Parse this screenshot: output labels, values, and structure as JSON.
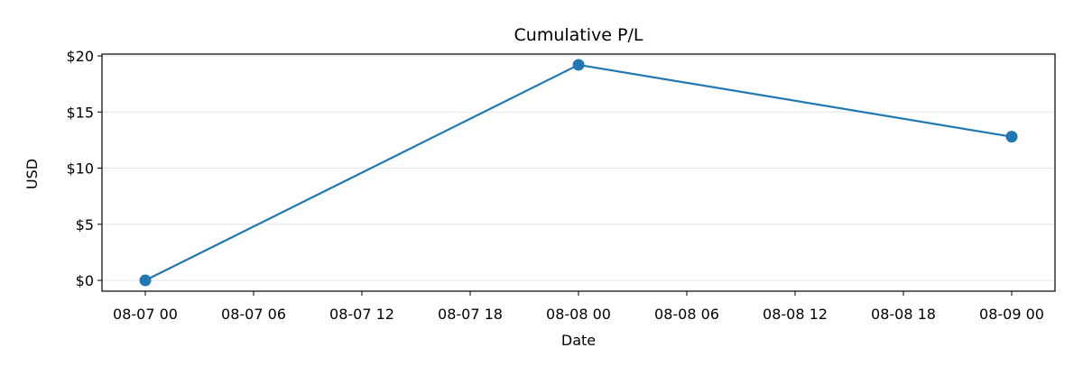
{
  "chart_data": {
    "type": "line",
    "title": "Cumulative P/L",
    "xlabel": "Date",
    "ylabel": "USD",
    "grid": "horizontal",
    "line_color": "#1f77b4",
    "series": [
      {
        "name": "Cumulative P/L",
        "x_hours": [
          0,
          24,
          48
        ],
        "x": [
          "08-07 00",
          "08-08 00",
          "08-09 00"
        ],
        "values": [
          0.0,
          19.2,
          12.8
        ]
      }
    ],
    "xlim_hours": [
      -2.4,
      50.4
    ],
    "x_ticks_hours": [
      0,
      6,
      12,
      18,
      24,
      30,
      36,
      42,
      48
    ],
    "x_tick_labels": [
      "08-07 00",
      "08-07 06",
      "08-07 12",
      "08-07 18",
      "08-08 00",
      "08-08 06",
      "08-08 12",
      "08-08 18",
      "08-09 00"
    ],
    "ylim": [
      -0.96,
      20.16
    ],
    "y_ticks": [
      0,
      5,
      10,
      15,
      20
    ],
    "y_tick_labels": [
      "$0",
      "$5",
      "$10",
      "$15",
      "$20"
    ]
  }
}
